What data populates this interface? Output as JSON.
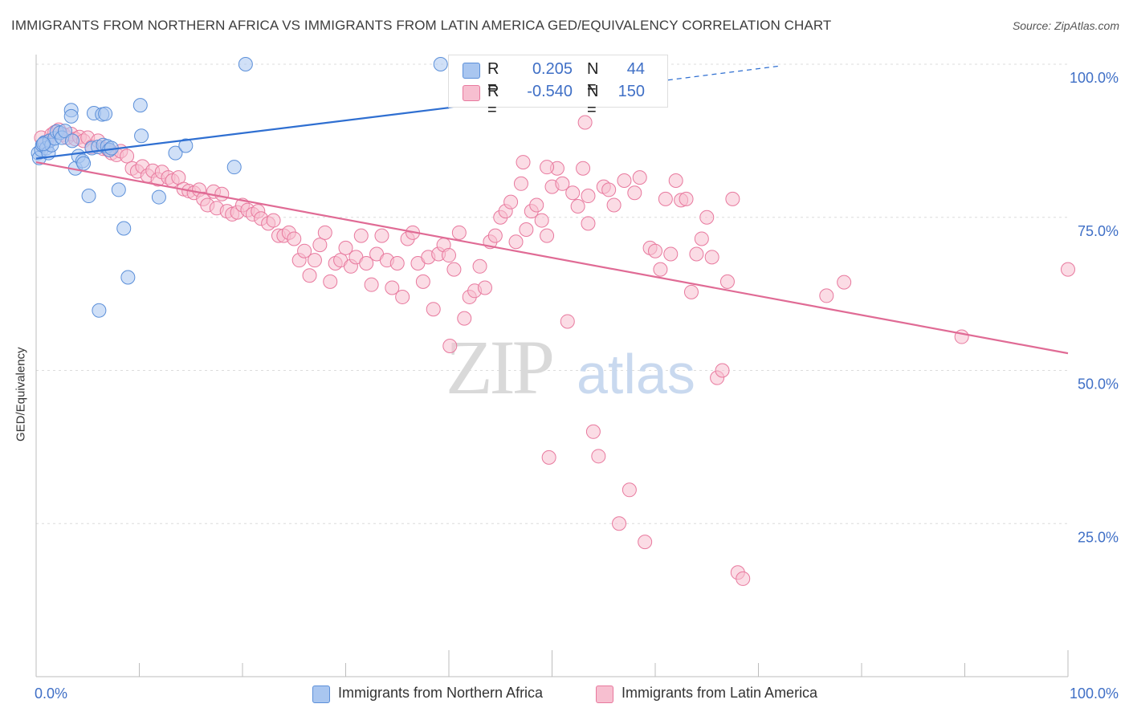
{
  "title": "IMMIGRANTS FROM NORTHERN AFRICA VS IMMIGRANTS FROM LATIN AMERICA GED/EQUIVALENCY CORRELATION CHART",
  "source": "Source: ZipAtlas.com",
  "watermark": {
    "zip": "ZIP",
    "atlas": "atlas"
  },
  "legend_top": {
    "rows": [
      {
        "r_label": "R =",
        "r_value": "0.205",
        "n_label": "N =",
        "n_value": "44",
        "color": "#a9c6f0",
        "border": "#5b8fd9"
      },
      {
        "r_label": "R =",
        "r_value": "-0.540",
        "n_label": "N =",
        "n_value": "150",
        "color": "#f7bfd0",
        "border": "#e8799e"
      }
    ]
  },
  "legend_bottom": [
    {
      "label": "Immigrants from Northern Africa",
      "color": "#a9c6f0",
      "border": "#5b8fd9"
    },
    {
      "label": "Immigrants from Latin America",
      "color": "#f7bfd0",
      "border": "#e8799e"
    }
  ],
  "chart_data": {
    "type": "scatter",
    "title": "IMMIGRANTS FROM NORTHERN AFRICA VS IMMIGRANTS FROM LATIN AMERICA GED/EQUIVALENCY CORRELATION CHART",
    "xlabel": "",
    "ylabel": "GED/Equivalency",
    "xlim": [
      0,
      100
    ],
    "ylim": [
      0,
      100
    ],
    "x_tick_labels": [
      {
        "value": 0,
        "label": "0.0%"
      },
      {
        "value": 100,
        "label": "100.0%"
      }
    ],
    "y_tick_labels": [
      {
        "value": 25,
        "label": "25.0%"
      },
      {
        "value": 50,
        "label": "50.0%"
      },
      {
        "value": 75,
        "label": "75.0%"
      },
      {
        "value": 100,
        "label": "100.0%"
      }
    ],
    "grid": true,
    "legend_position": "bottom",
    "series": [
      {
        "name": "Immigrants from Northern Africa",
        "color": "#a9c6f0",
        "stroke": "#5b8fd9",
        "line_color": "#2f6fd1",
        "trend": {
          "x": [
            0,
            40,
            72
          ],
          "y": [
            84.6,
            92.9,
            99.7
          ],
          "solid_until": 40
        },
        "points": [
          [
            0.2,
            85.5
          ],
          [
            0.3,
            84.7
          ],
          [
            0.5,
            86.0
          ],
          [
            0.6,
            86.8
          ],
          [
            0.8,
            87.2
          ],
          [
            1.0,
            86.3
          ],
          [
            1.2,
            85.5
          ],
          [
            1.3,
            87.5
          ],
          [
            1.5,
            86.8
          ],
          [
            1.8,
            87.9
          ],
          [
            2.0,
            89.0
          ],
          [
            2.3,
            88.8
          ],
          [
            2.5,
            88.0
          ],
          [
            2.8,
            89.1
          ],
          [
            3.4,
            92.5
          ],
          [
            3.4,
            91.5
          ],
          [
            3.5,
            87.5
          ],
          [
            3.8,
            83.0
          ],
          [
            4.1,
            85.0
          ],
          [
            4.5,
            84.2
          ],
          [
            4.6,
            83.8
          ],
          [
            5.1,
            78.5
          ],
          [
            5.4,
            86.3
          ],
          [
            5.6,
            92.0
          ],
          [
            6.0,
            86.5
          ],
          [
            6.4,
            91.8
          ],
          [
            6.5,
            86.8
          ],
          [
            6.7,
            91.9
          ],
          [
            6.9,
            86.6
          ],
          [
            7.1,
            86.0
          ],
          [
            7.3,
            86.3
          ],
          [
            8.0,
            79.5
          ],
          [
            8.5,
            73.2
          ],
          [
            8.9,
            65.2
          ],
          [
            6.1,
            59.8
          ],
          [
            10.1,
            93.3
          ],
          [
            10.2,
            88.3
          ],
          [
            11.9,
            78.3
          ],
          [
            13.5,
            85.5
          ],
          [
            14.5,
            86.7
          ],
          [
            19.2,
            83.2
          ],
          [
            20.3,
            100.0
          ],
          [
            39.2,
            100.0
          ],
          [
            0.7,
            87.0
          ]
        ]
      },
      {
        "name": "Immigrants from Latin America",
        "color": "#f7bfd0",
        "stroke": "#e8799e",
        "line_color": "#e06b95",
        "trend": {
          "x": [
            0,
            100
          ],
          "y": [
            84.0,
            52.8
          ]
        },
        "points": [
          [
            0.5,
            88.0
          ],
          [
            1.0,
            87.3
          ],
          [
            1.5,
            88.5
          ],
          [
            1.8,
            88.9
          ],
          [
            2.2,
            89.3
          ],
          [
            2.7,
            88.5
          ],
          [
            3.0,
            88.0
          ],
          [
            3.4,
            88.6
          ],
          [
            3.8,
            87.8
          ],
          [
            4.2,
            88.1
          ],
          [
            4.6,
            87.5
          ],
          [
            5.0,
            88.0
          ],
          [
            5.4,
            86.5
          ],
          [
            6.0,
            87.5
          ],
          [
            6.5,
            86.2
          ],
          [
            7.0,
            86.0
          ],
          [
            7.3,
            85.5
          ],
          [
            7.8,
            85.2
          ],
          [
            8.2,
            85.8
          ],
          [
            8.8,
            85.0
          ],
          [
            9.3,
            83.0
          ],
          [
            9.8,
            82.5
          ],
          [
            10.3,
            83.3
          ],
          [
            10.8,
            81.8
          ],
          [
            11.3,
            82.6
          ],
          [
            11.8,
            81.2
          ],
          [
            12.2,
            82.4
          ],
          [
            12.8,
            81.5
          ],
          [
            13.2,
            81.0
          ],
          [
            13.8,
            81.5
          ],
          [
            14.3,
            79.6
          ],
          [
            14.8,
            79.3
          ],
          [
            15.3,
            79.0
          ],
          [
            15.8,
            79.5
          ],
          [
            16.2,
            78.0
          ],
          [
            16.6,
            77.0
          ],
          [
            17.2,
            79.2
          ],
          [
            17.5,
            76.5
          ],
          [
            18.0,
            78.8
          ],
          [
            18.5,
            76.0
          ],
          [
            19.0,
            75.5
          ],
          [
            19.5,
            75.8
          ],
          [
            20.0,
            77.0
          ],
          [
            20.5,
            76.2
          ],
          [
            21.0,
            75.5
          ],
          [
            21.5,
            76.0
          ],
          [
            21.8,
            74.8
          ],
          [
            22.5,
            74.0
          ],
          [
            23.0,
            74.5
          ],
          [
            23.5,
            72.0
          ],
          [
            24.0,
            72.0
          ],
          [
            24.5,
            72.5
          ],
          [
            25.0,
            71.5
          ],
          [
            25.5,
            68.0
          ],
          [
            26.0,
            69.5
          ],
          [
            26.5,
            65.5
          ],
          [
            27.0,
            68.0
          ],
          [
            27.5,
            70.5
          ],
          [
            28.0,
            72.5
          ],
          [
            28.5,
            64.5
          ],
          [
            29.0,
            67.5
          ],
          [
            29.5,
            68.0
          ],
          [
            30.0,
            70.0
          ],
          [
            30.5,
            67.0
          ],
          [
            31.0,
            68.5
          ],
          [
            31.5,
            72.0
          ],
          [
            32.0,
            67.5
          ],
          [
            32.5,
            64.0
          ],
          [
            33.0,
            69.0
          ],
          [
            33.5,
            72.0
          ],
          [
            34.0,
            68.0
          ],
          [
            34.5,
            63.5
          ],
          [
            35.0,
            67.5
          ],
          [
            35.5,
            62.0
          ],
          [
            36.0,
            71.5
          ],
          [
            36.5,
            72.5
          ],
          [
            37.0,
            67.5
          ],
          [
            37.5,
            64.5
          ],
          [
            38.0,
            68.5
          ],
          [
            38.5,
            60.0
          ],
          [
            39.0,
            69.0
          ],
          [
            39.5,
            70.5
          ],
          [
            40.0,
            68.8
          ],
          [
            40.5,
            66.5
          ],
          [
            41.0,
            72.5
          ],
          [
            41.5,
            58.5
          ],
          [
            42.0,
            62.0
          ],
          [
            42.5,
            63.0
          ],
          [
            43.0,
            67.0
          ],
          [
            43.5,
            63.5
          ],
          [
            44.0,
            71.0
          ],
          [
            44.5,
            72.0
          ],
          [
            45.0,
            75.0
          ],
          [
            45.5,
            76.0
          ],
          [
            46.0,
            77.5
          ],
          [
            46.5,
            71.0
          ],
          [
            47.0,
            80.5
          ],
          [
            47.5,
            73.0
          ],
          [
            48.0,
            76.0
          ],
          [
            48.5,
            77.0
          ],
          [
            49.0,
            74.5
          ],
          [
            49.5,
            72.0
          ],
          [
            50.0,
            80.0
          ],
          [
            50.5,
            83.0
          ],
          [
            51.0,
            80.5
          ],
          [
            51.5,
            58.0
          ],
          [
            52.0,
            79.0
          ],
          [
            52.5,
            76.8
          ],
          [
            53.0,
            83.0
          ],
          [
            53.5,
            74.0
          ],
          [
            54.0,
            40.0
          ],
          [
            54.5,
            36.0
          ],
          [
            55.0,
            80.0
          ],
          [
            55.5,
            79.5
          ],
          [
            56.0,
            77.0
          ],
          [
            56.5,
            25.0
          ],
          [
            57.0,
            81.0
          ],
          [
            57.5,
            30.5
          ],
          [
            58.0,
            79.0
          ],
          [
            58.5,
            81.5
          ],
          [
            59.0,
            22.0
          ],
          [
            59.5,
            70.0
          ],
          [
            60.0,
            69.5
          ],
          [
            60.5,
            66.5
          ],
          [
            61.0,
            78.0
          ],
          [
            61.5,
            69.0
          ],
          [
            62.0,
            81.0
          ],
          [
            62.5,
            77.8
          ],
          [
            63.0,
            78.0
          ],
          [
            63.5,
            62.8
          ],
          [
            64.0,
            69.0
          ],
          [
            64.5,
            71.5
          ],
          [
            65.0,
            75.0
          ],
          [
            65.5,
            68.5
          ],
          [
            66.0,
            48.8
          ],
          [
            66.5,
            50.0
          ],
          [
            67.0,
            64.5
          ],
          [
            67.5,
            78.0
          ],
          [
            68.0,
            17.0
          ],
          [
            68.5,
            16.0
          ],
          [
            40.1,
            54.0
          ],
          [
            49.7,
            35.8
          ],
          [
            76.6,
            62.2
          ],
          [
            78.3,
            64.4
          ],
          [
            89.7,
            55.5
          ],
          [
            100.0,
            66.5
          ],
          [
            53.2,
            90.5
          ],
          [
            47.2,
            84.0
          ],
          [
            49.5,
            83.2
          ],
          [
            53.5,
            78.5
          ]
        ]
      }
    ]
  }
}
